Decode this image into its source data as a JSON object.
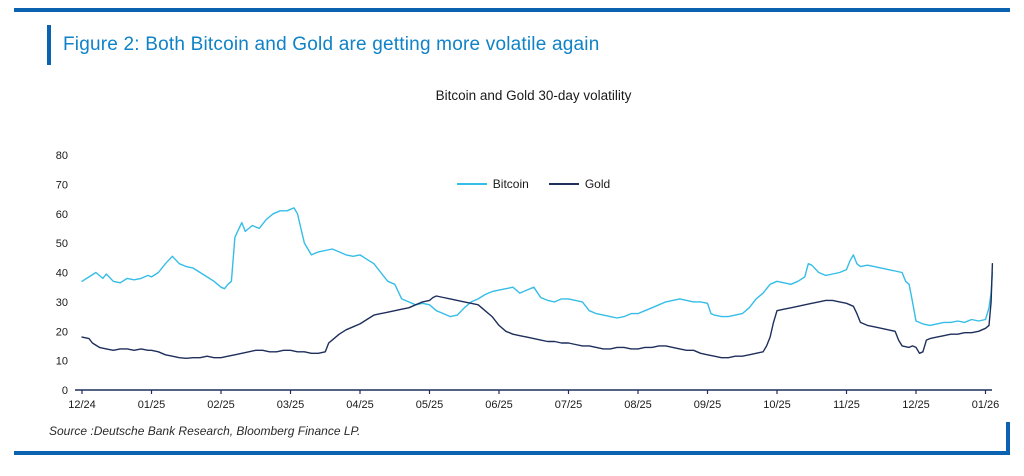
{
  "figure": {
    "title": "Figure 2: Both Bitcoin and Gold are getting more volatile again",
    "source": "Source :Deutsche Bank Research, Bloomberg Finance LP.",
    "accent_color": "#0b62b0",
    "title_color": "#0f82c8"
  },
  "chart_data": {
    "type": "line",
    "title": "Bitcoin and Gold 30-day volatility",
    "xlabel": "",
    "ylabel": "",
    "ylim": [
      0,
      80
    ],
    "y_ticks": [
      0,
      10,
      20,
      30,
      40,
      50,
      60,
      70,
      80
    ],
    "x_tick_labels": [
      "12/24",
      "01/25",
      "02/25",
      "03/25",
      "04/25",
      "05/25",
      "06/25",
      "07/25",
      "08/25",
      "09/25",
      "10/25",
      "11/25",
      "12/25",
      "01/26"
    ],
    "grid": false,
    "legend_position": "top-center",
    "axis_color": "#1e2f5c",
    "series": [
      {
        "name": "Bitcoin",
        "color": "#35bde8",
        "points": [
          [
            0.0,
            37
          ],
          [
            0.1,
            38.5
          ],
          [
            0.2,
            40
          ],
          [
            0.3,
            38
          ],
          [
            0.35,
            39.5
          ],
          [
            0.45,
            37
          ],
          [
            0.55,
            36.5
          ],
          [
            0.65,
            38
          ],
          [
            0.75,
            37.5
          ],
          [
            0.85,
            38
          ],
          [
            0.95,
            39
          ],
          [
            1.0,
            38.5
          ],
          [
            1.1,
            40
          ],
          [
            1.2,
            43
          ],
          [
            1.3,
            45.5
          ],
          [
            1.4,
            43
          ],
          [
            1.5,
            42
          ],
          [
            1.6,
            41.5
          ],
          [
            1.7,
            40
          ],
          [
            1.8,
            38.5
          ],
          [
            1.9,
            37
          ],
          [
            2.0,
            35
          ],
          [
            2.05,
            34.5
          ],
          [
            2.1,
            36
          ],
          [
            2.15,
            37
          ],
          [
            2.2,
            52
          ],
          [
            2.3,
            57
          ],
          [
            2.35,
            54
          ],
          [
            2.45,
            56
          ],
          [
            2.55,
            55
          ],
          [
            2.65,
            58
          ],
          [
            2.75,
            60
          ],
          [
            2.85,
            61
          ],
          [
            2.95,
            61
          ],
          [
            3.0,
            61.5
          ],
          [
            3.05,
            62
          ],
          [
            3.1,
            60
          ],
          [
            3.15,
            55
          ],
          [
            3.2,
            50
          ],
          [
            3.3,
            46
          ],
          [
            3.4,
            47
          ],
          [
            3.5,
            47.5
          ],
          [
            3.6,
            48
          ],
          [
            3.7,
            47
          ],
          [
            3.8,
            46
          ],
          [
            3.9,
            45.5
          ],
          [
            4.0,
            46
          ],
          [
            4.1,
            44.5
          ],
          [
            4.2,
            43
          ],
          [
            4.3,
            40
          ],
          [
            4.4,
            37
          ],
          [
            4.5,
            36
          ],
          [
            4.6,
            31
          ],
          [
            4.7,
            30
          ],
          [
            4.8,
            29
          ],
          [
            4.9,
            29.5
          ],
          [
            5.0,
            29
          ],
          [
            5.1,
            27
          ],
          [
            5.2,
            26
          ],
          [
            5.3,
            25
          ],
          [
            5.4,
            25.5
          ],
          [
            5.5,
            28
          ],
          [
            5.6,
            30
          ],
          [
            5.7,
            31
          ],
          [
            5.8,
            32.5
          ],
          [
            5.9,
            33.5
          ],
          [
            6.0,
            34
          ],
          [
            6.1,
            34.5
          ],
          [
            6.2,
            35
          ],
          [
            6.3,
            33
          ],
          [
            6.4,
            34
          ],
          [
            6.5,
            35
          ],
          [
            6.6,
            31.5
          ],
          [
            6.7,
            30.5
          ],
          [
            6.8,
            30
          ],
          [
            6.9,
            31
          ],
          [
            7.0,
            31
          ],
          [
            7.1,
            30.5
          ],
          [
            7.2,
            30
          ],
          [
            7.3,
            27
          ],
          [
            7.4,
            26
          ],
          [
            7.5,
            25.5
          ],
          [
            7.6,
            25
          ],
          [
            7.7,
            24.5
          ],
          [
            7.8,
            25
          ],
          [
            7.9,
            26
          ],
          [
            8.0,
            26
          ],
          [
            8.1,
            27
          ],
          [
            8.2,
            28
          ],
          [
            8.3,
            29
          ],
          [
            8.4,
            30
          ],
          [
            8.5,
            30.5
          ],
          [
            8.6,
            31
          ],
          [
            8.7,
            30.5
          ],
          [
            8.8,
            30
          ],
          [
            8.9,
            30
          ],
          [
            9.0,
            29.5
          ],
          [
            9.05,
            26
          ],
          [
            9.1,
            25.5
          ],
          [
            9.2,
            25
          ],
          [
            9.3,
            25
          ],
          [
            9.4,
            25.5
          ],
          [
            9.5,
            26
          ],
          [
            9.6,
            28
          ],
          [
            9.7,
            31
          ],
          [
            9.8,
            33
          ],
          [
            9.9,
            36
          ],
          [
            10.0,
            37
          ],
          [
            10.1,
            36.5
          ],
          [
            10.2,
            36
          ],
          [
            10.3,
            37
          ],
          [
            10.4,
            38.5
          ],
          [
            10.45,
            43
          ],
          [
            10.5,
            42.5
          ],
          [
            10.6,
            40
          ],
          [
            10.7,
            39
          ],
          [
            10.8,
            39.5
          ],
          [
            10.9,
            40
          ],
          [
            11.0,
            41
          ],
          [
            11.05,
            44
          ],
          [
            11.1,
            46
          ],
          [
            11.15,
            43
          ],
          [
            11.2,
            42
          ],
          [
            11.3,
            42.5
          ],
          [
            11.4,
            42
          ],
          [
            11.5,
            41.5
          ],
          [
            11.6,
            41
          ],
          [
            11.7,
            40.5
          ],
          [
            11.8,
            40
          ],
          [
            11.85,
            37
          ],
          [
            11.9,
            36
          ],
          [
            11.95,
            30
          ],
          [
            12.0,
            23.5
          ],
          [
            12.1,
            22.5
          ],
          [
            12.2,
            22
          ],
          [
            12.3,
            22.5
          ],
          [
            12.4,
            23
          ],
          [
            12.5,
            23
          ],
          [
            12.6,
            23.5
          ],
          [
            12.7,
            23
          ],
          [
            12.8,
            24
          ],
          [
            12.9,
            23.5
          ],
          [
            13.0,
            24
          ],
          [
            13.05,
            28
          ],
          [
            13.08,
            33
          ],
          [
            13.1,
            40
          ]
        ]
      },
      {
        "name": "Gold",
        "color": "#1e2f5c",
        "points": [
          [
            0.0,
            18
          ],
          [
            0.1,
            17.5
          ],
          [
            0.15,
            16
          ],
          [
            0.25,
            14.5
          ],
          [
            0.35,
            14
          ],
          [
            0.45,
            13.5
          ],
          [
            0.55,
            14
          ],
          [
            0.65,
            14
          ],
          [
            0.75,
            13.5
          ],
          [
            0.85,
            14
          ],
          [
            0.95,
            13.5
          ],
          [
            1.0,
            13.5
          ],
          [
            1.1,
            13
          ],
          [
            1.2,
            12
          ],
          [
            1.3,
            11.5
          ],
          [
            1.4,
            11
          ],
          [
            1.5,
            10.8
          ],
          [
            1.6,
            11
          ],
          [
            1.7,
            11
          ],
          [
            1.8,
            11.5
          ],
          [
            1.9,
            11
          ],
          [
            2.0,
            11
          ],
          [
            2.1,
            11.5
          ],
          [
            2.2,
            12
          ],
          [
            2.3,
            12.5
          ],
          [
            2.4,
            13
          ],
          [
            2.5,
            13.5
          ],
          [
            2.6,
            13.5
          ],
          [
            2.7,
            13
          ],
          [
            2.8,
            13
          ],
          [
            2.9,
            13.5
          ],
          [
            3.0,
            13.5
          ],
          [
            3.1,
            13
          ],
          [
            3.2,
            13
          ],
          [
            3.3,
            12.5
          ],
          [
            3.4,
            12.5
          ],
          [
            3.5,
            13
          ],
          [
            3.55,
            16
          ],
          [
            3.6,
            17
          ],
          [
            3.7,
            19
          ],
          [
            3.8,
            20.5
          ],
          [
            3.9,
            21.5
          ],
          [
            4.0,
            22.5
          ],
          [
            4.1,
            24
          ],
          [
            4.2,
            25.5
          ],
          [
            4.3,
            26
          ],
          [
            4.4,
            26.5
          ],
          [
            4.5,
            27
          ],
          [
            4.6,
            27.5
          ],
          [
            4.7,
            28
          ],
          [
            4.8,
            29
          ],
          [
            4.9,
            30
          ],
          [
            5.0,
            30.5
          ],
          [
            5.05,
            31.5
          ],
          [
            5.1,
            32
          ],
          [
            5.2,
            31.5
          ],
          [
            5.3,
            31
          ],
          [
            5.4,
            30.5
          ],
          [
            5.5,
            30
          ],
          [
            5.6,
            29.5
          ],
          [
            5.7,
            29
          ],
          [
            5.8,
            27
          ],
          [
            5.9,
            25
          ],
          [
            6.0,
            22
          ],
          [
            6.1,
            20
          ],
          [
            6.2,
            19
          ],
          [
            6.3,
            18.5
          ],
          [
            6.4,
            18
          ],
          [
            6.5,
            17.5
          ],
          [
            6.6,
            17
          ],
          [
            6.7,
            16.5
          ],
          [
            6.8,
            16.5
          ],
          [
            6.9,
            16
          ],
          [
            7.0,
            16
          ],
          [
            7.1,
            15.5
          ],
          [
            7.2,
            15
          ],
          [
            7.3,
            15
          ],
          [
            7.4,
            14.5
          ],
          [
            7.5,
            14
          ],
          [
            7.6,
            14
          ],
          [
            7.7,
            14.5
          ],
          [
            7.8,
            14.5
          ],
          [
            7.9,
            14
          ],
          [
            8.0,
            14
          ],
          [
            8.1,
            14.5
          ],
          [
            8.2,
            14.5
          ],
          [
            8.3,
            15
          ],
          [
            8.4,
            15
          ],
          [
            8.5,
            14.5
          ],
          [
            8.6,
            14
          ],
          [
            8.7,
            13.5
          ],
          [
            8.8,
            13.5
          ],
          [
            8.9,
            12.5
          ],
          [
            9.0,
            12
          ],
          [
            9.1,
            11.5
          ],
          [
            9.2,
            11
          ],
          [
            9.3,
            11
          ],
          [
            9.4,
            11.5
          ],
          [
            9.5,
            11.5
          ],
          [
            9.6,
            12
          ],
          [
            9.7,
            12.5
          ],
          [
            9.8,
            13
          ],
          [
            9.85,
            15
          ],
          [
            9.9,
            18
          ],
          [
            9.95,
            23
          ],
          [
            10.0,
            27
          ],
          [
            10.1,
            27.5
          ],
          [
            10.2,
            28
          ],
          [
            10.3,
            28.5
          ],
          [
            10.4,
            29
          ],
          [
            10.5,
            29.5
          ],
          [
            10.6,
            30
          ],
          [
            10.7,
            30.5
          ],
          [
            10.8,
            30.5
          ],
          [
            10.9,
            30
          ],
          [
            11.0,
            29.5
          ],
          [
            11.1,
            28.5
          ],
          [
            11.15,
            26
          ],
          [
            11.2,
            23
          ],
          [
            11.3,
            22
          ],
          [
            11.4,
            21.5
          ],
          [
            11.5,
            21
          ],
          [
            11.6,
            20.5
          ],
          [
            11.7,
            20
          ],
          [
            11.75,
            17
          ],
          [
            11.8,
            15
          ],
          [
            11.9,
            14.5
          ],
          [
            11.95,
            15
          ],
          [
            12.0,
            14.5
          ],
          [
            12.05,
            12.5
          ],
          [
            12.1,
            13
          ],
          [
            12.15,
            17
          ],
          [
            12.2,
            17.5
          ],
          [
            12.3,
            18
          ],
          [
            12.4,
            18.5
          ],
          [
            12.5,
            19
          ],
          [
            12.6,
            19
          ],
          [
            12.7,
            19.5
          ],
          [
            12.8,
            19.5
          ],
          [
            12.9,
            20
          ],
          [
            13.0,
            21
          ],
          [
            13.05,
            22
          ],
          [
            13.08,
            30
          ],
          [
            13.1,
            43
          ]
        ]
      }
    ]
  }
}
